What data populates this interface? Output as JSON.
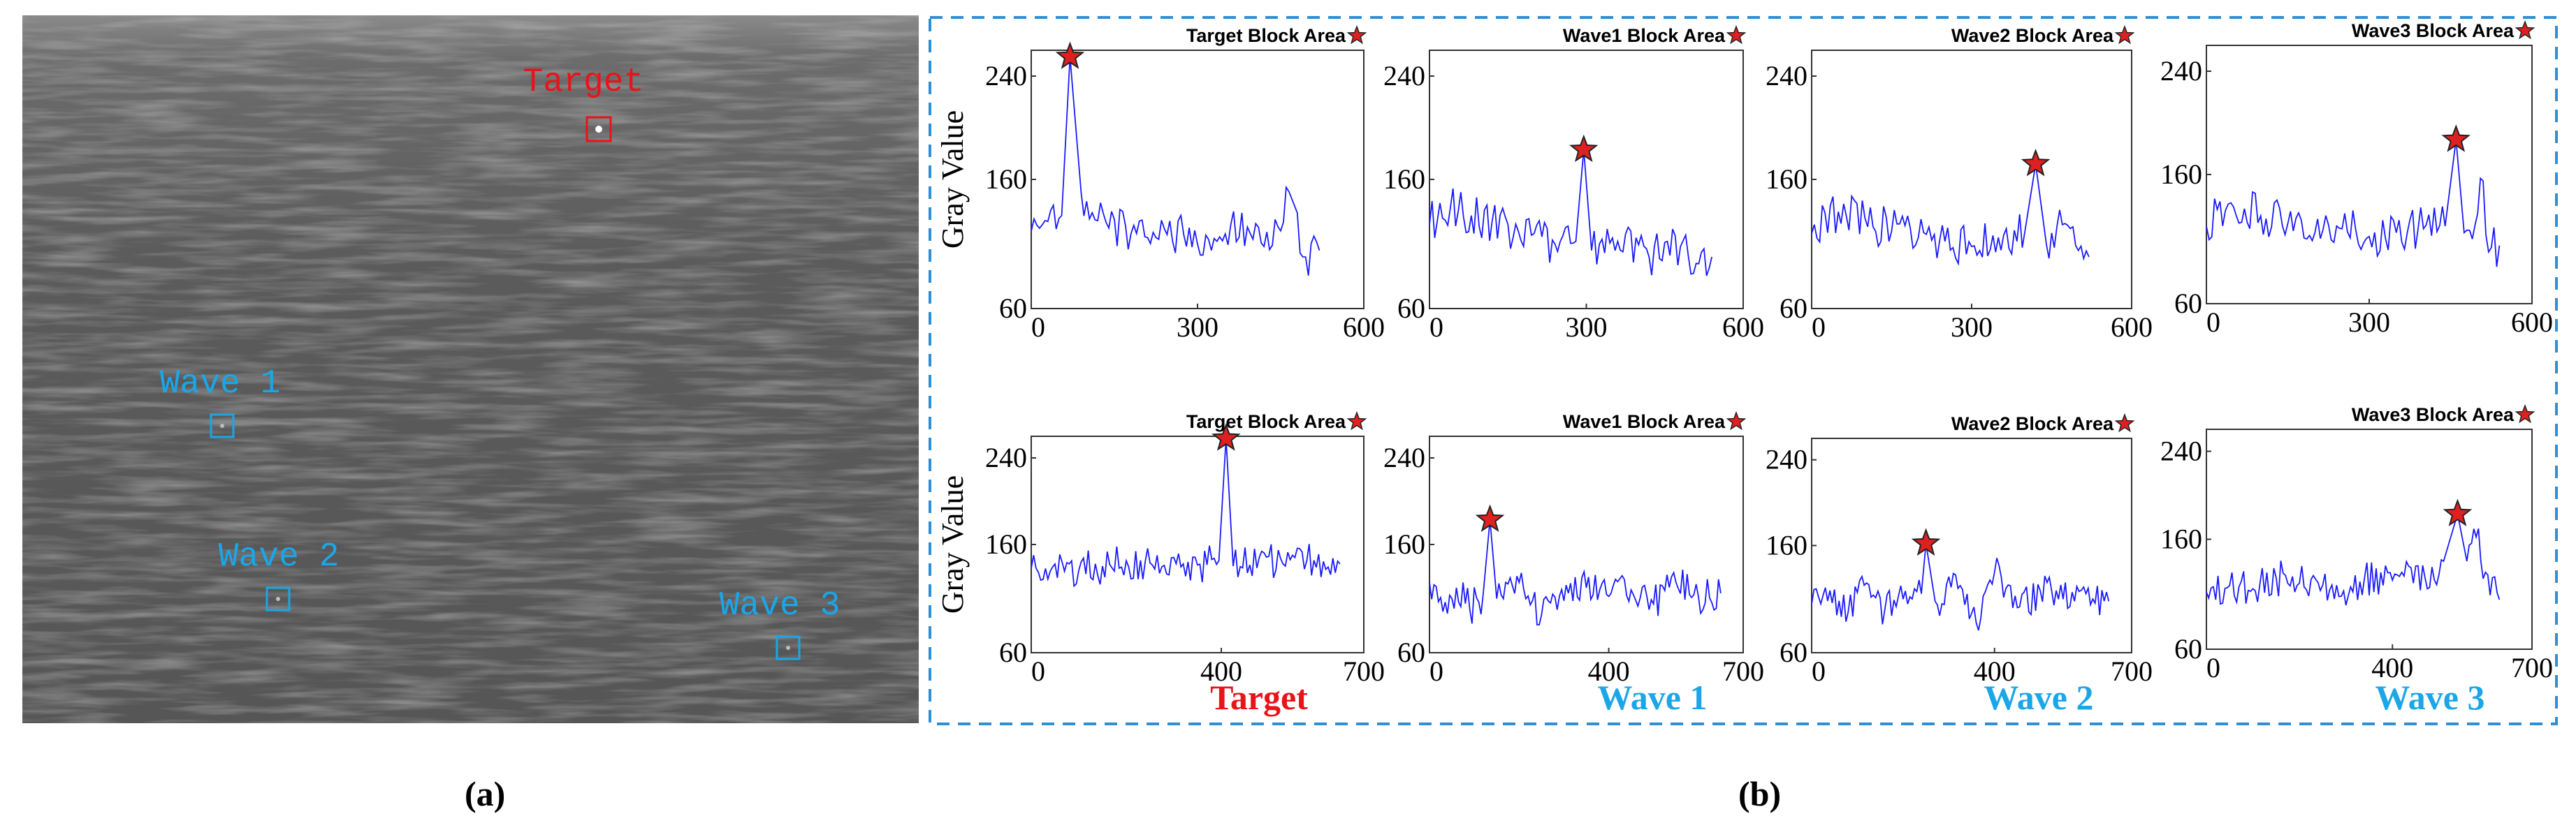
{
  "colors": {
    "target": "#e8141a",
    "wave": "#1ba6e8",
    "line": "#1a1aff",
    "star": "#e02020",
    "panel_border": "#2f8fd6"
  },
  "panel_a": {
    "label": "(a)",
    "markers": [
      {
        "name": "target",
        "label": "Target"
      },
      {
        "name": "wave-1",
        "label": "Wave 1"
      },
      {
        "name": "wave-2",
        "label": "Wave 2"
      },
      {
        "name": "wave-3",
        "label": "Wave 3"
      }
    ]
  },
  "panel_b": {
    "label": "(b)",
    "column_titles": [
      "Target",
      "Wave 1",
      "Wave 2",
      "Wave 3"
    ],
    "ylabel": "Gray Value"
  },
  "chart_data": [
    {
      "type": "line",
      "row": 0,
      "col": 0,
      "annotation": "Target Block Area",
      "ylabel": "Gray Value",
      "xlim": [
        0,
        600
      ],
      "ylim": [
        60,
        260
      ],
      "xticks": [
        "0",
        "300",
        "600"
      ],
      "yticks": [
        "60",
        "160",
        "240"
      ],
      "peak": {
        "x": 70,
        "y": 255
      },
      "series": [
        {
          "values": [
            {
              "x": 0,
              "y": 120
            },
            {
              "x": 20,
              "y": 125
            },
            {
              "x": 40,
              "y": 140
            },
            {
              "x": 55,
              "y": 132
            },
            {
              "x": 70,
              "y": 255
            },
            {
              "x": 90,
              "y": 150
            },
            {
              "x": 120,
              "y": 128
            },
            {
              "x": 180,
              "y": 118
            },
            {
              "x": 240,
              "y": 122
            },
            {
              "x": 300,
              "y": 110
            },
            {
              "x": 360,
              "y": 125
            },
            {
              "x": 420,
              "y": 108
            },
            {
              "x": 470,
              "y": 145
            },
            {
              "x": 490,
              "y": 100
            },
            {
              "x": 520,
              "y": 105
            }
          ]
        }
      ]
    },
    {
      "type": "line",
      "row": 0,
      "col": 1,
      "annotation": "Wave1 Block Area",
      "xlim": [
        0,
        600
      ],
      "ylim": [
        60,
        260
      ],
      "xticks": [
        "0",
        "300",
        "600"
      ],
      "yticks": [
        "60",
        "160",
        "240"
      ],
      "peak": {
        "x": 295,
        "y": 183
      },
      "series": [
        {
          "values": [
            {
              "x": 0,
              "y": 125
            },
            {
              "x": 40,
              "y": 138
            },
            {
              "x": 80,
              "y": 132
            },
            {
              "x": 120,
              "y": 128
            },
            {
              "x": 160,
              "y": 115
            },
            {
              "x": 200,
              "y": 118
            },
            {
              "x": 240,
              "y": 110
            },
            {
              "x": 280,
              "y": 112
            },
            {
              "x": 295,
              "y": 183
            },
            {
              "x": 310,
              "y": 105
            },
            {
              "x": 360,
              "y": 112
            },
            {
              "x": 420,
              "y": 100
            },
            {
              "x": 480,
              "y": 108
            },
            {
              "x": 510,
              "y": 95
            },
            {
              "x": 540,
              "y": 100
            }
          ]
        }
      ]
    },
    {
      "type": "line",
      "row": 0,
      "col": 2,
      "annotation": "Wave2 Block Area",
      "xlim": [
        0,
        600
      ],
      "ylim": [
        60,
        260
      ],
      "xticks": [
        "0",
        "300",
        "600"
      ],
      "yticks": [
        "60",
        "160",
        "240"
      ],
      "peak": {
        "x": 420,
        "y": 172
      },
      "series": [
        {
          "values": [
            {
              "x": 0,
              "y": 118
            },
            {
              "x": 50,
              "y": 135
            },
            {
              "x": 100,
              "y": 130
            },
            {
              "x": 150,
              "y": 120
            },
            {
              "x": 200,
              "y": 115
            },
            {
              "x": 250,
              "y": 112
            },
            {
              "x": 300,
              "y": 108
            },
            {
              "x": 350,
              "y": 115
            },
            {
              "x": 400,
              "y": 120
            },
            {
              "x": 420,
              "y": 172
            },
            {
              "x": 440,
              "y": 110
            },
            {
              "x": 470,
              "y": 125
            },
            {
              "x": 500,
              "y": 105
            },
            {
              "x": 520,
              "y": 100
            }
          ]
        }
      ]
    },
    {
      "type": "line",
      "row": 0,
      "col": 3,
      "annotation": "Wave3 Block Area",
      "xlim": [
        0,
        600
      ],
      "ylim": [
        60,
        260
      ],
      "xticks": [
        "0",
        "300",
        "600"
      ],
      "yticks": [
        "60",
        "160",
        "240"
      ],
      "peak": {
        "x": 460,
        "y": 187
      },
      "series": [
        {
          "values": [
            {
              "x": 0,
              "y": 120
            },
            {
              "x": 50,
              "y": 135
            },
            {
              "x": 100,
              "y": 128
            },
            {
              "x": 150,
              "y": 122
            },
            {
              "x": 200,
              "y": 115
            },
            {
              "x": 250,
              "y": 118
            },
            {
              "x": 300,
              "y": 112
            },
            {
              "x": 350,
              "y": 115
            },
            {
              "x": 400,
              "y": 118
            },
            {
              "x": 440,
              "y": 120
            },
            {
              "x": 460,
              "y": 187
            },
            {
              "x": 475,
              "y": 115
            },
            {
              "x": 500,
              "y": 130
            },
            {
              "x": 510,
              "y": 155
            },
            {
              "x": 520,
              "y": 100
            },
            {
              "x": 540,
              "y": 105
            }
          ]
        }
      ]
    },
    {
      "type": "line",
      "row": 1,
      "col": 0,
      "annotation": "Target Block Area",
      "ylabel": "Gray Value",
      "xlim": [
        0,
        700
      ],
      "ylim": [
        60,
        260
      ],
      "xticks": [
        "0",
        "400",
        "700"
      ],
      "yticks": [
        "60",
        "160",
        "240"
      ],
      "peak": {
        "x": 410,
        "y": 258
      },
      "series": [
        {
          "values": [
            {
              "x": 0,
              "y": 138
            },
            {
              "x": 50,
              "y": 142
            },
            {
              "x": 100,
              "y": 136
            },
            {
              "x": 150,
              "y": 140
            },
            {
              "x": 200,
              "y": 145
            },
            {
              "x": 250,
              "y": 143
            },
            {
              "x": 300,
              "y": 148
            },
            {
              "x": 350,
              "y": 141
            },
            {
              "x": 395,
              "y": 145
            },
            {
              "x": 410,
              "y": 258
            },
            {
              "x": 425,
              "y": 140
            },
            {
              "x": 480,
              "y": 148
            },
            {
              "x": 530,
              "y": 142
            },
            {
              "x": 580,
              "y": 145
            },
            {
              "x": 620,
              "y": 137
            },
            {
              "x": 650,
              "y": 142
            }
          ]
        }
      ]
    },
    {
      "type": "line",
      "row": 1,
      "col": 1,
      "annotation": "Wave1 Block Area",
      "xlim": [
        0,
        700
      ],
      "ylim": [
        60,
        260
      ],
      "xticks": [
        "0",
        "400",
        "700"
      ],
      "yticks": [
        "60",
        "160",
        "240"
      ],
      "peak": {
        "x": 135,
        "y": 183
      },
      "series": [
        {
          "values": [
            {
              "x": 0,
              "y": 125
            },
            {
              "x": 30,
              "y": 98
            },
            {
              "x": 60,
              "y": 120
            },
            {
              "x": 90,
              "y": 100
            },
            {
              "x": 120,
              "y": 115
            },
            {
              "x": 135,
              "y": 183
            },
            {
              "x": 150,
              "y": 110
            },
            {
              "x": 200,
              "y": 125
            },
            {
              "x": 250,
              "y": 95
            },
            {
              "x": 300,
              "y": 108
            },
            {
              "x": 350,
              "y": 120
            },
            {
              "x": 400,
              "y": 112
            },
            {
              "x": 450,
              "y": 118
            },
            {
              "x": 500,
              "y": 105
            },
            {
              "x": 550,
              "y": 125
            },
            {
              "x": 600,
              "y": 112
            },
            {
              "x": 650,
              "y": 115
            }
          ]
        }
      ]
    },
    {
      "type": "line",
      "row": 1,
      "col": 2,
      "annotation": "Wave2 Block Area",
      "xlim": [
        0,
        700
      ],
      "ylim": [
        60,
        260
      ],
      "xticks": [
        "0",
        "400",
        "700"
      ],
      "yticks": [
        "60",
        "160",
        "240"
      ],
      "peak": {
        "x": 250,
        "y": 162
      },
      "series": [
        {
          "values": [
            {
              "x": 0,
              "y": 105
            },
            {
              "x": 40,
              "y": 118
            },
            {
              "x": 80,
              "y": 98
            },
            {
              "x": 120,
              "y": 125
            },
            {
              "x": 160,
              "y": 100
            },
            {
              "x": 200,
              "y": 110
            },
            {
              "x": 240,
              "y": 115
            },
            {
              "x": 250,
              "y": 162
            },
            {
              "x": 270,
              "y": 108
            },
            {
              "x": 320,
              "y": 120
            },
            {
              "x": 360,
              "y": 88
            },
            {
              "x": 400,
              "y": 135
            },
            {
              "x": 450,
              "y": 102
            },
            {
              "x": 500,
              "y": 118
            },
            {
              "x": 550,
              "y": 110
            },
            {
              "x": 600,
              "y": 115
            },
            {
              "x": 650,
              "y": 108
            }
          ]
        }
      ]
    },
    {
      "type": "line",
      "row": 1,
      "col": 3,
      "annotation": "Wave3 Block Area",
      "xlim": [
        0,
        700
      ],
      "ylim": [
        60,
        260
      ],
      "xticks": [
        "0",
        "400",
        "700"
      ],
      "yticks": [
        "60",
        "160",
        "240"
      ],
      "peak": {
        "x": 540,
        "y": 183
      },
      "series": [
        {
          "values": [
            {
              "x": 0,
              "y": 112
            },
            {
              "x": 50,
              "y": 118
            },
            {
              "x": 100,
              "y": 115
            },
            {
              "x": 150,
              "y": 125
            },
            {
              "x": 200,
              "y": 120
            },
            {
              "x": 250,
              "y": 118
            },
            {
              "x": 300,
              "y": 100
            },
            {
              "x": 340,
              "y": 125
            },
            {
              "x": 380,
              "y": 118
            },
            {
              "x": 420,
              "y": 130
            },
            {
              "x": 470,
              "y": 125
            },
            {
              "x": 510,
              "y": 140
            },
            {
              "x": 540,
              "y": 183
            },
            {
              "x": 560,
              "y": 140
            },
            {
              "x": 580,
              "y": 162
            },
            {
              "x": 600,
              "y": 130
            },
            {
              "x": 630,
              "y": 105
            }
          ]
        }
      ]
    }
  ]
}
